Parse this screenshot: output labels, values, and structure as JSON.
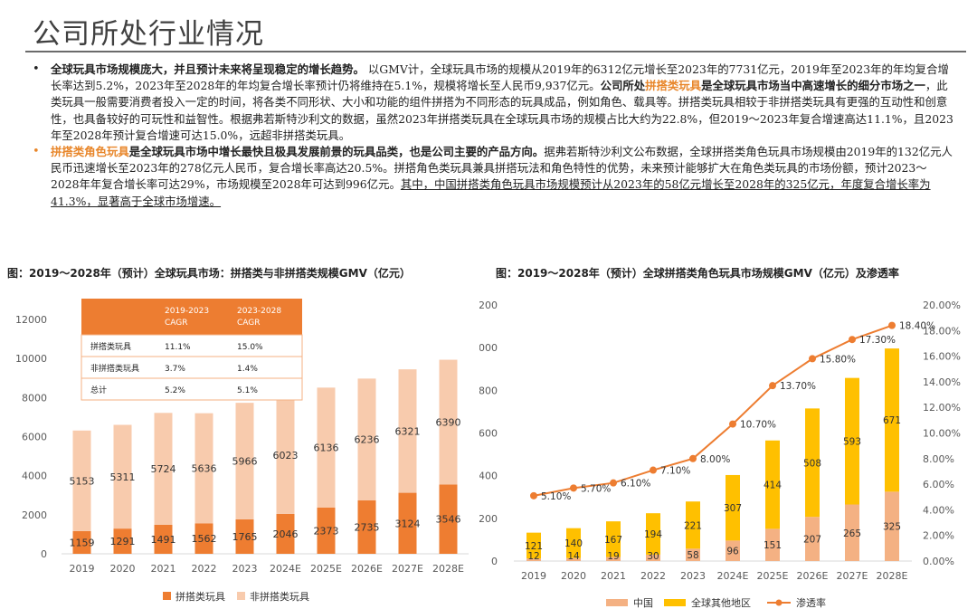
{
  "page": {
    "title": "公司所处行业情况"
  },
  "bullets": [
    {
      "parts": [
        {
          "text": "全球玩具市场规模庞大，并且预计未来将呈现稳定的增长趋势。",
          "style": "bold"
        },
        {
          "text": " 以GMV计，全球玩具市场的规模从2019年的6312亿元增长至2023年的7731亿元，2019年至2023年的年均复合增长率达到5.2%，2023年至2028年的年均复合增长率预计仍将维持在5.1%，规模将增长至人民币9,937亿元。",
          "style": "normal"
        },
        {
          "text": "公司所处",
          "style": "bold"
        },
        {
          "text": "拼搭类玩具",
          "style": "orange"
        },
        {
          "text": "是全球玩具市场当中高速增长的细分市场之一",
          "style": "bold"
        },
        {
          "text": "，此类玩具一般需要消费者投入一定的时间，将各类不同形状、大小和功能的组件拼搭为不同形态的玩具成品，例如角色、载具等。拼搭类玩具相较于非拼搭类玩具有更强的互动性和创意性，也具备较好的可玩性和益智性。根据弗若斯特沙利文的数据，虽然2023年拼搭类玩具在全球玩具市场的规模占比大约为22.8%，但2019～2023年复合增速高达11.1%，且2023年至2028年预计复合增速可达15.0%，远超非拼搭类玩具。",
          "style": "normal"
        }
      ]
    },
    {
      "parts": [
        {
          "text": "拼搭类角色玩具",
          "style": "orange"
        },
        {
          "text": "是全球玩具市场中增长最快且极具发展前景的玩具品类，也是公司主要的产品方向。",
          "style": "bold"
        },
        {
          "text": "据弗若斯特沙利文公布数据，全球拼搭类角色玩具市场规模由2019年的132亿元人民币迅速增长至2023年的278亿元人民币，复合增长率高达20.5%。拼搭角色类玩具兼具拼搭玩法和角色特性的优势，未来预计能够扩大在角色类玩具的市场份额，预计2023～2028年年复合增长率可达29%，市场规模至2028年可达到996亿元。",
          "style": "normal"
        },
        {
          "text": "其中，中国拼搭类角色玩具市场规模预计从2023年的58亿元增长至2028年的325亿元，年度复合增长率为41.3%，显著高于全球市场增速。",
          "style": "underline"
        }
      ]
    }
  ],
  "colors": {
    "orange_dark": "#ee7d31",
    "orange_light": "#f8cbad",
    "yellow": "#ffc000",
    "china": "#f4b183",
    "line": "#ed7d31",
    "table_head": "#ed7d31",
    "axis_text": "#595959"
  },
  "chart_left_title": "图：2019～2028年（预计）全球玩具市场：拼搭类与非拼搭类规模GMV（亿元）",
  "chart_right_title": "图：2019～2028年（预计）全球拼搭类角色玩具市场规模GMV（亿元）及渗透率",
  "cagr_table": {
    "headers": [
      "",
      "2019-2023\nCAGR",
      "2023-2028\nCAGR"
    ],
    "header1": [
      "2019-2023",
      "CAGR"
    ],
    "header2": [
      "2023-2028",
      "CAGR"
    ],
    "rows": [
      {
        "label": "拼搭类玩具",
        "a": "11.1%",
        "b": "15.0%"
      },
      {
        "label": "非拼搭类玩具",
        "a": "3.7%",
        "b": "1.4%"
      },
      {
        "label": "总计",
        "a": "5.2%",
        "b": "5.1%"
      }
    ]
  },
  "chart_data": [
    {
      "type": "bar",
      "stacked": true,
      "title": "图：2019～2028年（预计）全球玩具市场：拼搭类与非拼搭类规模GMV（亿元）",
      "categories": [
        "2019",
        "2020",
        "2021",
        "2022",
        "2023",
        "2024E",
        "2025E",
        "2026E",
        "2027E",
        "2028E"
      ],
      "series": [
        {
          "name": "拼搭类玩具",
          "values": [
            1159,
            1291,
            1491,
            1562,
            1765,
            2046,
            2373,
            2735,
            3124,
            3546
          ]
        },
        {
          "name": "非拼搭类玩具",
          "values": [
            5153,
            5311,
            5724,
            5636,
            5966,
            6023,
            6136,
            6236,
            6321,
            6390
          ]
        }
      ],
      "ylim": [
        0,
        12000
      ],
      "yticks": [
        "0",
        "2000",
        "4000",
        "6000",
        "8000",
        "10000",
        "12000"
      ],
      "legend_position": "bottom"
    },
    {
      "type": "bar",
      "stacked": true,
      "title": "图：2019～2028年（预计）全球拼搭类角色玩具市场规模GMV（亿元）及渗透率",
      "categories": [
        "2019",
        "2020",
        "2021",
        "2022",
        "2023",
        "2024E",
        "2025E",
        "2026E",
        "2027E",
        "2028E"
      ],
      "series": [
        {
          "name": "中国",
          "values": [
            12,
            14,
            19,
            30,
            58,
            96,
            151,
            207,
            265,
            325
          ]
        },
        {
          "name": "全球其他地区",
          "values": [
            121,
            140,
            167,
            194,
            221,
            307,
            414,
            508,
            593,
            671
          ]
        },
        {
          "name": "渗透率",
          "type": "line",
          "axis": "right",
          "values": [
            5.1,
            5.7,
            6.1,
            7.1,
            8.0,
            10.7,
            13.7,
            15.8,
            17.3,
            18.4
          ],
          "labels": [
            "5.10%",
            "5.70%",
            "6.10%",
            "7.10%",
            "8.00%",
            "10.70%",
            "13.70%",
            "15.80%",
            "17.30%",
            "18.40%"
          ]
        }
      ],
      "ylim": [
        0,
        1200
      ],
      "yticks": [
        "0",
        "200",
        "400",
        "600",
        "800",
        "1000",
        "1200"
      ],
      "y2lim": [
        0,
        20
      ],
      "y2ticks": [
        "0.00%",
        "2.00%",
        "4.00%",
        "6.00%",
        "8.00%",
        "10.00%",
        "12.00%",
        "14.00%",
        "16.00%",
        "18.00%",
        "20.00%"
      ],
      "legend_position": "bottom"
    }
  ]
}
